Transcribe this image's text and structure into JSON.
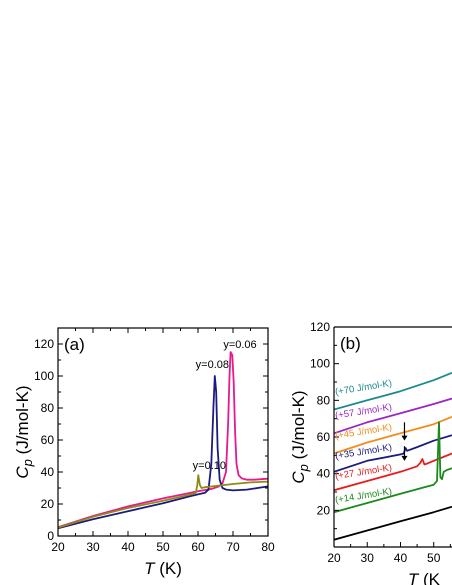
{
  "chart_data": [
    {
      "panel": "(a)",
      "type": "line",
      "xlabel": {
        "symbol": "T",
        "unit": " (K)"
      },
      "ylabel": {
        "symbol": "C",
        "subscript": "p",
        "unit": " (J/mol-K)"
      },
      "xlim": [
        20,
        80
      ],
      "ylim": [
        0,
        130
      ],
      "xticks": [
        20,
        30,
        40,
        50,
        60,
        70,
        80
      ],
      "yticks": [
        0,
        20,
        40,
        60,
        80,
        100,
        120
      ],
      "grid": false,
      "legend": "none",
      "series": [
        {
          "color": "#e8198b",
          "x": [
            20,
            30,
            40,
            50,
            60,
            64,
            66,
            67,
            68,
            68.6,
            69,
            69.3,
            69.8,
            70.2,
            70.6,
            71,
            71.6,
            72.5,
            74,
            76,
            78,
            80
          ],
          "y": [
            5.5,
            12.5,
            18.5,
            23.5,
            28,
            29.5,
            31,
            33,
            40,
            70,
            100,
            115,
            113,
            96,
            65,
            45,
            38,
            36,
            35.2,
            35.2,
            35.5,
            35.8
          ]
        },
        {
          "color": "#1a1a80",
          "x": [
            20,
            30,
            40,
            50,
            58,
            62,
            63,
            63.8,
            64.4,
            64.8,
            65.2,
            65.6,
            66.2,
            67,
            68,
            70,
            74,
            80
          ],
          "y": [
            4.8,
            10.5,
            15.5,
            20.5,
            25,
            27,
            29,
            45,
            80,
            100,
            90,
            55,
            35,
            30,
            29,
            28.5,
            29,
            31
          ]
        },
        {
          "color": "#8c8c14",
          "x": [
            20,
            30,
            40,
            50,
            58,
            59.4,
            59.8,
            60.1,
            60.5,
            61,
            62,
            66,
            70,
            75,
            80
          ],
          "y": [
            5.2,
            12,
            17.5,
            22,
            26,
            27,
            32,
            38,
            32,
            30,
            30.5,
            31.5,
            32.5,
            33.5,
            34
          ]
        }
      ],
      "annotations": [
        "y=0.10",
        "y=0.08",
        "y=0.06"
      ]
    },
    {
      "panel": "(b)",
      "type": "line",
      "xlabel": {
        "symbol": "T",
        "unit": " (K"
      },
      "ylabel": {
        "symbol": "C",
        "subscript": "p",
        "unit": " (J/mol-K)"
      },
      "xlim": [
        20,
        55.5
      ],
      "ylim": [
        0,
        120
      ],
      "xticks": [
        20,
        30,
        40,
        50
      ],
      "yticks": [
        20,
        40,
        60,
        80,
        100,
        120
      ],
      "grid": false,
      "legend": "none",
      "offsets": [
        "(+70 J/mol-K)",
        "(+57 J/mol-K)",
        "(+45 J/mol-K)",
        "(+35 J/mol-K)",
        "(+27 J/mol-K)",
        "(+14 J/mol-K)"
      ],
      "series": [
        {
          "color": "#1a8a8a",
          "x": [
            20,
            30,
            40,
            50,
            55.5
          ],
          "y": [
            75,
            80,
            85,
            91,
            95
          ]
        },
        {
          "color": "#9b26c6",
          "x": [
            20,
            30,
            40,
            50,
            55.5
          ],
          "y": [
            62,
            68,
            73,
            78,
            81
          ]
        },
        {
          "color": "#f28c1c",
          "x": [
            20,
            30,
            40,
            50,
            55.5
          ],
          "y": [
            51,
            57,
            62,
            67,
            71
          ]
        },
        {
          "color": "#1a1a80",
          "x": [
            20,
            30,
            40,
            41,
            41.5,
            42,
            45,
            50,
            55.5
          ],
          "y": [
            41,
            47,
            50.5,
            51,
            54,
            52.5,
            54.5,
            58,
            61
          ]
        },
        {
          "color": "#e81c1c",
          "x": [
            20,
            30,
            40,
            45,
            46,
            46.6,
            47.2,
            48,
            50,
            55.5
          ],
          "y": [
            31,
            36,
            41,
            44,
            46,
            48,
            45,
            45.5,
            47,
            51
          ]
        },
        {
          "color": "#1a8a1a",
          "x": [
            20,
            30,
            40,
            48,
            50,
            51,
            51.6,
            52,
            52.5,
            53,
            54,
            55.5
          ],
          "y": [
            19,
            24,
            29,
            33,
            34,
            36,
            68,
            38,
            37,
            41,
            42,
            43
          ]
        },
        {
          "color": "#000000",
          "x": [
            20,
            30,
            40,
            50,
            55.5
          ],
          "y": [
            4,
            9,
            14,
            19,
            22
          ]
        }
      ],
      "arrows": [
        {
          "x": 41.2,
          "y_from": 68,
          "y_to": 58
        },
        {
          "x": 41.2,
          "y_from": 55,
          "y_to": 47
        }
      ]
    }
  ]
}
